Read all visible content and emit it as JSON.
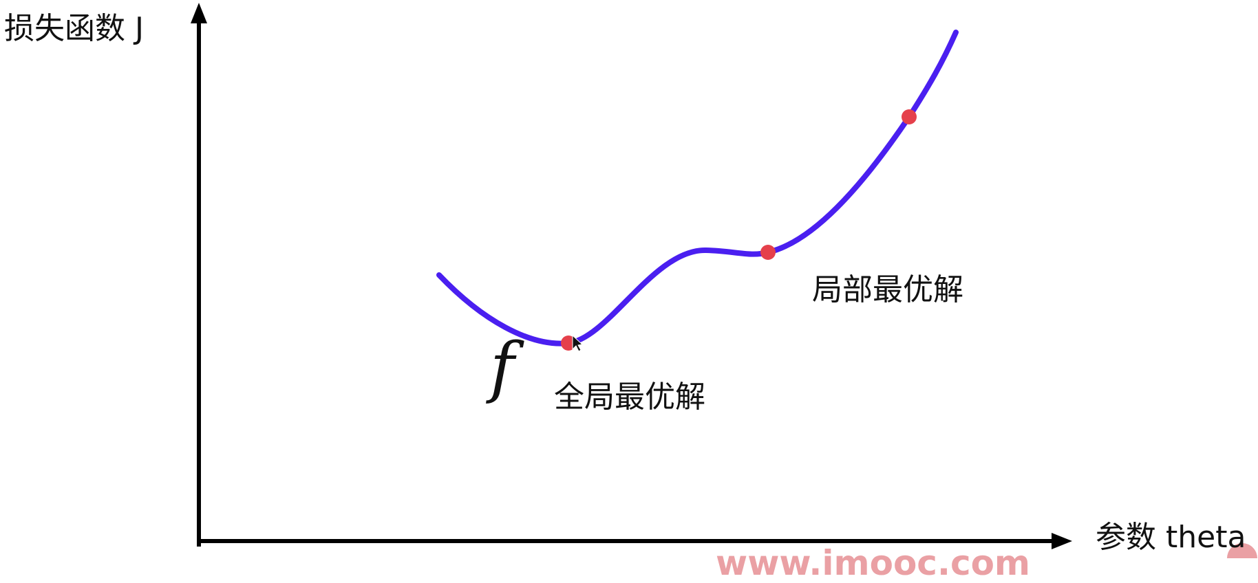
{
  "chart_data": {
    "type": "line",
    "title": "",
    "xlabel": "参数 theta",
    "ylabel": "损失函数 J",
    "function_label": "f",
    "curve_color": "#4a1ff0",
    "point_color": "#e5404b",
    "annotations": [
      {
        "label": "全局最优解",
        "meaning": "global minimum point"
      },
      {
        "label": "局部最优解",
        "meaning": "local minimum point"
      }
    ],
    "marked_points": [
      "global minimum",
      "local minimum",
      "point on rising slope"
    ],
    "grid": false,
    "legend": "none"
  },
  "watermark": "www.imooc.com"
}
